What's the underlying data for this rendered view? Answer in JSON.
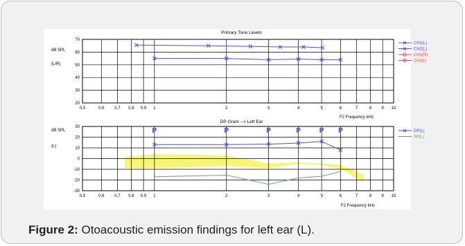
{
  "caption": {
    "label": "Figure 2:",
    "text": " Otoacoustic emission findings for left ear (L)."
  },
  "colors": {
    "ch1l": "#4a4aff",
    "ch1r": "#ff4040",
    "nf": "#5cad5c",
    "noise_band": "#f5f56a",
    "grid": "#000000"
  },
  "chart_data": [
    {
      "type": "line",
      "title": "Primary Tone Levels",
      "ylabel": "dB SPL",
      "ylabel2": "(L/R)",
      "xlabel": "F2 Frequency kHz",
      "x_scale": "log",
      "xlim": [
        0.5,
        10
      ],
      "ylim": [
        20,
        70
      ],
      "x_ticks": [
        0.5,
        0.6,
        0.7,
        0.8,
        0.9,
        1,
        2,
        3,
        4,
        5,
        6,
        7,
        8,
        9,
        10
      ],
      "x_tick_labels": [
        "0.5",
        "0.6",
        "0.7",
        "0.8",
        "0.9",
        "1",
        "2",
        "3",
        "4",
        "5",
        "6",
        "7",
        "8",
        "9",
        "10"
      ],
      "y_ticks": [
        20,
        30,
        40,
        50,
        60,
        70
      ],
      "y_tick_labels": [
        "20",
        "30",
        "40",
        "50",
        "60",
        "70"
      ],
      "grid": true,
      "legend": "right",
      "series": [
        {
          "name": "CH1(L)",
          "color": "#4a4aff",
          "marker": "x",
          "x": [
            0.84,
            1.68,
            2.52,
            3.36,
            4.2,
            5.04
          ],
          "y": [
            65.5,
            65,
            64.5,
            64,
            64,
            63.5
          ]
        },
        {
          "name": "CH2(L)",
          "color": "#4a4aff",
          "marker": "x",
          "x": [
            1,
            2,
            3,
            4,
            5,
            6
          ],
          "y": [
            55,
            55,
            54,
            54.5,
            54,
            54
          ]
        },
        {
          "name": "CH1(R)",
          "color": "#ff4040",
          "marker": "o",
          "x": [],
          "y": []
        },
        {
          "name": "CH2(r)",
          "color": "#ff4040",
          "marker": "o",
          "x": [],
          "y": []
        }
      ]
    },
    {
      "type": "line",
      "title": "DP-Gram --> Left Ear",
      "ylabel": "dB SPL",
      "ylabel2": "(L)",
      "xlabel": "F2 Frequency kHz",
      "x_scale": "log",
      "xlim": [
        0.5,
        10
      ],
      "ylim": [
        -30,
        30
      ],
      "x_ticks": [
        0.5,
        0.6,
        0.7,
        0.8,
        0.9,
        1,
        2,
        3,
        4,
        5,
        6,
        7,
        8,
        9,
        10
      ],
      "x_tick_labels": [
        "0.5",
        "0.6",
        "0.7",
        "0.8",
        "0.9",
        "1",
        "2",
        "3",
        "4",
        "5",
        "6",
        "7",
        "8",
        "9",
        "10"
      ],
      "y_ticks": [
        -30,
        -20,
        -10,
        0,
        10,
        20,
        30
      ],
      "y_tick_labels": [
        "-30",
        "-20",
        "-10",
        "0",
        "10",
        "20",
        "30"
      ],
      "grid": true,
      "legend": "right",
      "pass_marker": "P",
      "pass_x": [
        1,
        2,
        3,
        4,
        5,
        6
      ],
      "series": [
        {
          "name": "DP(L)",
          "color": "#4a4aff",
          "marker": "x",
          "x": [
            1,
            2,
            3,
            4,
            5,
            6
          ],
          "y": [
            13,
            13,
            13.5,
            14.5,
            16,
            8
          ]
        },
        {
          "name": "NF(L)",
          "color": "#5cad5c",
          "marker": "none",
          "x": [
            1,
            2,
            3,
            4,
            5,
            6
          ],
          "y": [
            -17,
            -15.5,
            -24,
            -18,
            -16.5,
            -12
          ]
        }
      ],
      "noise_band": {
        "x": [
          0.75,
          1,
          2,
          3,
          4,
          5,
          6,
          7.5
        ],
        "upper": [
          1.5,
          4,
          3,
          -4.5,
          -3.5,
          -4.5,
          -6,
          -15
        ],
        "lower": [
          -9,
          -9,
          -7,
          -9,
          -5,
          -6,
          -10,
          -22
        ]
      }
    }
  ]
}
